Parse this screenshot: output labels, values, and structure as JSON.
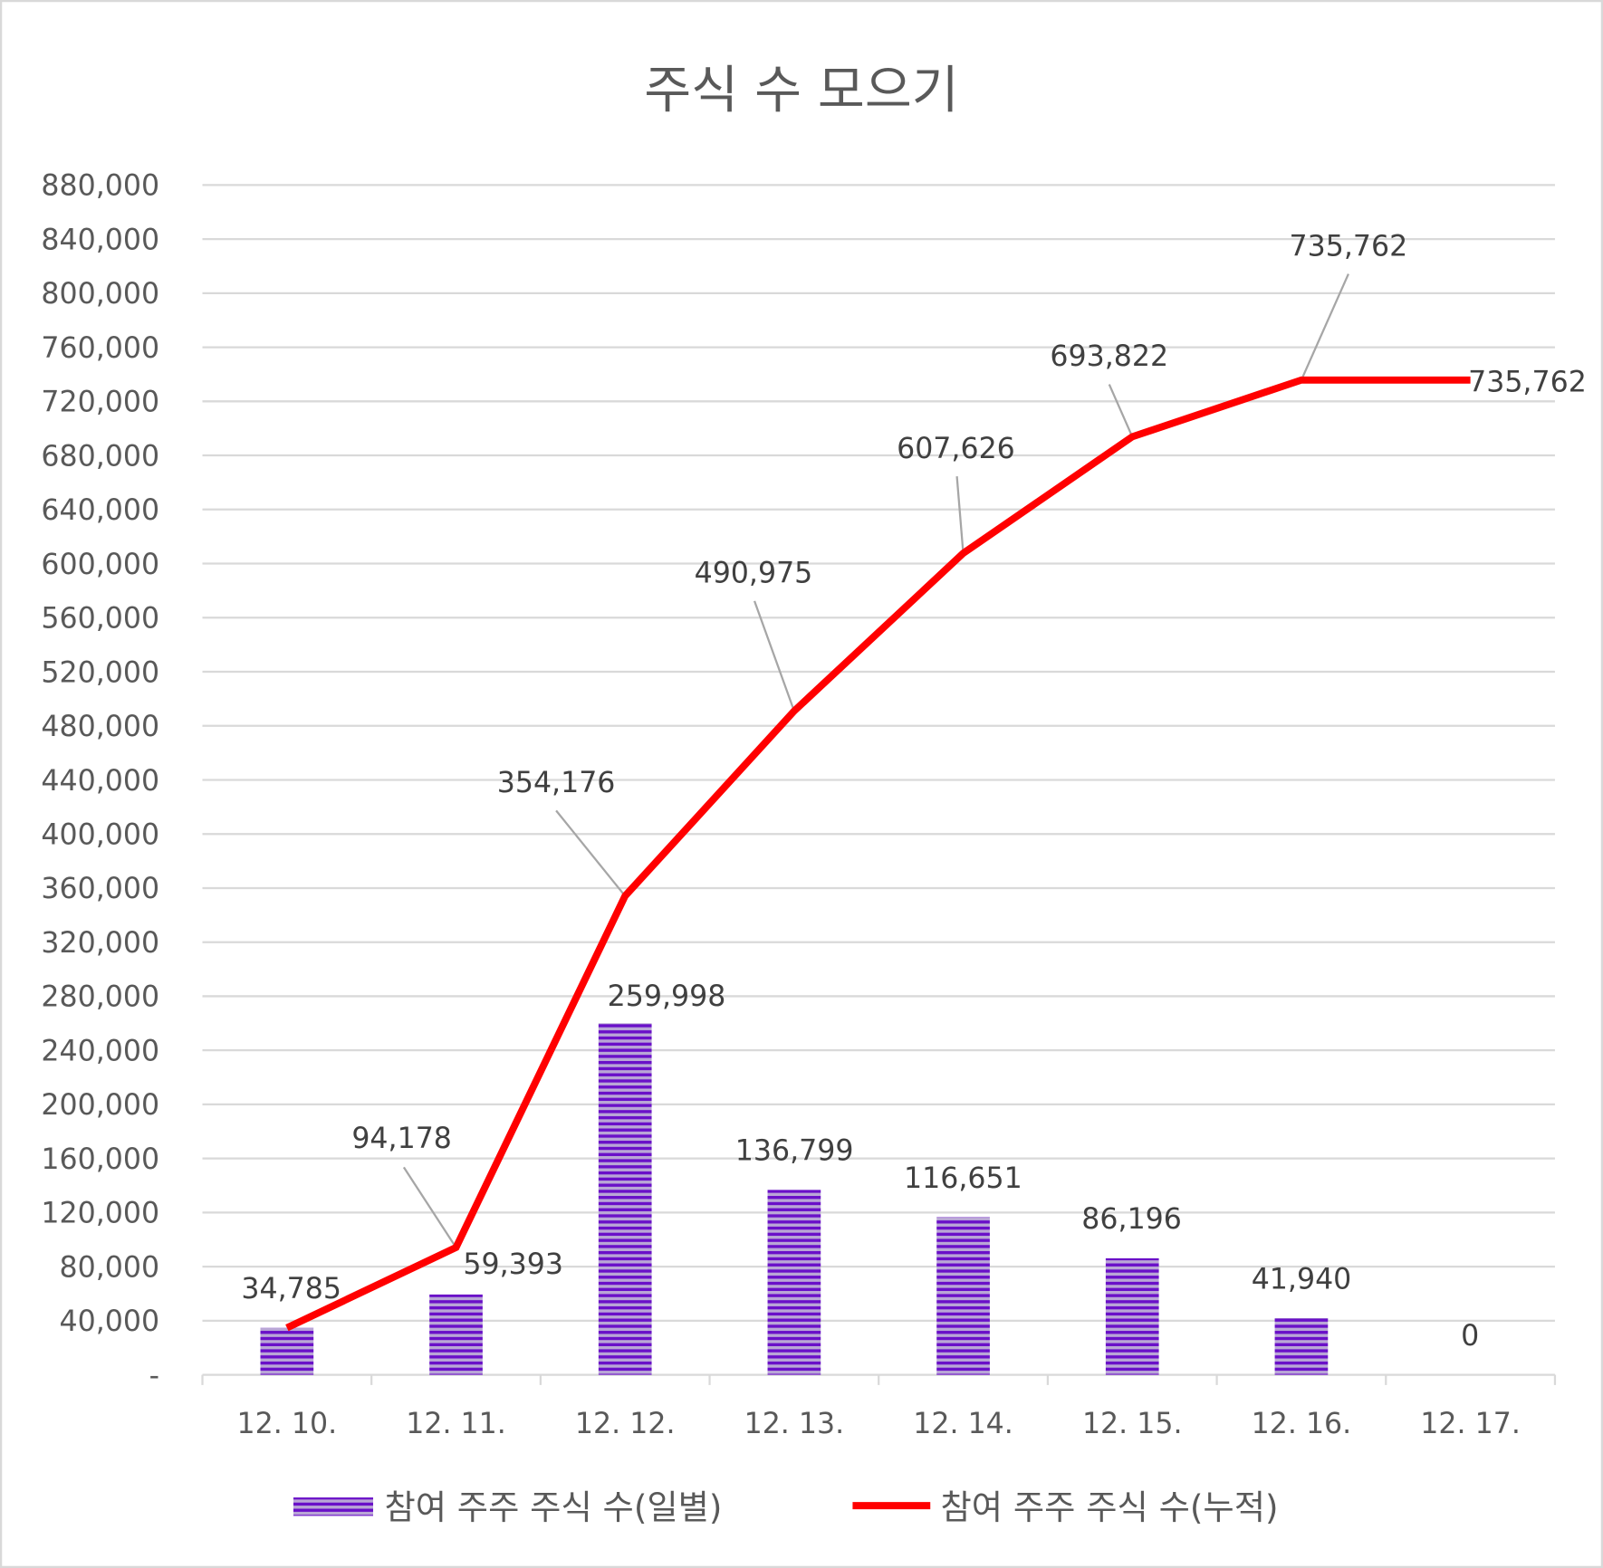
{
  "chart_data": {
    "type": "bar+line",
    "title": "주식 수 모으기",
    "categories": [
      "12. 10.",
      "12. 11.",
      "12. 12.",
      "12. 13.",
      "12. 14.",
      "12. 15.",
      "12. 16.",
      "12. 17."
    ],
    "series": [
      {
        "name": "참여 주주 주식 수(일별)",
        "type": "bar",
        "color": "#6a0dc8",
        "values": [
          34785,
          59393,
          259998,
          136799,
          116651,
          86196,
          41940,
          0
        ],
        "labels": [
          "34,785",
          "59,393",
          "259,998",
          "136,799",
          "116,651",
          "86,196",
          "41,940",
          "0"
        ]
      },
      {
        "name": "참여 주주 주식 수(누적)",
        "type": "line",
        "color": "#ff0000",
        "values": [
          34785,
          94178,
          354176,
          490975,
          607626,
          693822,
          735762,
          735762
        ],
        "labels": [
          "34,785",
          "94,178",
          "354,176",
          "490,975",
          "607,626",
          "693,822",
          "735,762",
          "735,762"
        ]
      }
    ],
    "ylim": [
      0,
      880000
    ],
    "yticks": [
      "-",
      "40,000",
      "80,000",
      "120,000",
      "160,000",
      "200,000",
      "240,000",
      "280,000",
      "320,000",
      "360,000",
      "400,000",
      "440,000",
      "480,000",
      "520,000",
      "560,000",
      "600,000",
      "640,000",
      "680,000",
      "720,000",
      "760,000",
      "800,000",
      "840,000",
      "880,000"
    ],
    "grid": true,
    "legend": "bottom"
  }
}
